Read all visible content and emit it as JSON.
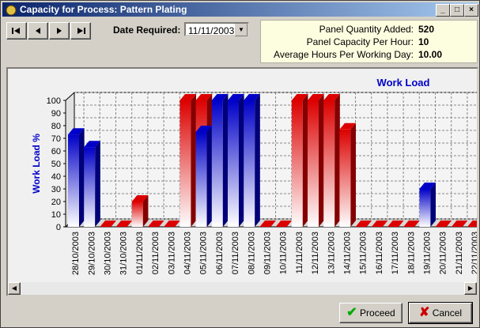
{
  "window": {
    "title": "Capacity for Process:  Pattern Plating"
  },
  "toolbar": {
    "date_label": "Date Required:",
    "date_value": "11/11/2003"
  },
  "info": {
    "rows": [
      {
        "label": "Panel Quantity Added:",
        "value": 520
      },
      {
        "label": "Panel Capacity Per Hour:",
        "value": 10
      },
      {
        "label": "Average Hours Per Working Day:",
        "value": "10.00"
      }
    ]
  },
  "buttons": {
    "proceed": "Proceed",
    "cancel": "Cancel"
  },
  "chart_data": {
    "type": "bar3d",
    "title": "Work Load",
    "y_label": "Work Load %",
    "categories": [
      "28/10/2003",
      "29/10/2003",
      "30/10/2003",
      "31/10/2003",
      "01/11/2003",
      "02/11/2003",
      "03/11/2003",
      "04/11/2003",
      "05/11/2003",
      "06/11/2003",
      "07/11/2003",
      "08/11/2003",
      "09/11/2003",
      "10/11/2003",
      "11/11/2003",
      "12/11/2003",
      "13/11/2003",
      "14/11/2003",
      "15/11/2003",
      "16/11/2003",
      "17/11/2003",
      "18/11/2003",
      "19/11/2003",
      "20/11/2003",
      "21/11/2003",
      "22/11/2003"
    ],
    "series": [
      {
        "color": "#dc0000",
        "values": [
          null,
          null,
          0,
          0,
          20,
          0,
          0,
          100,
          100,
          null,
          null,
          null,
          0,
          0,
          100,
          100,
          100,
          77,
          0,
          0,
          0,
          0,
          null,
          0,
          0,
          0
        ]
      },
      {
        "color": "#0000c8",
        "values": [
          73,
          63,
          null,
          null,
          null,
          null,
          null,
          null,
          75,
          100,
          100,
          100,
          null,
          null,
          null,
          null,
          null,
          null,
          null,
          null,
          null,
          null,
          30,
          null,
          null,
          null
        ]
      }
    ],
    "ylim": [
      0,
      100
    ],
    "yticks": [
      0,
      10,
      20,
      30,
      40,
      50,
      60,
      70,
      80,
      90,
      100
    ],
    "grid": true
  }
}
